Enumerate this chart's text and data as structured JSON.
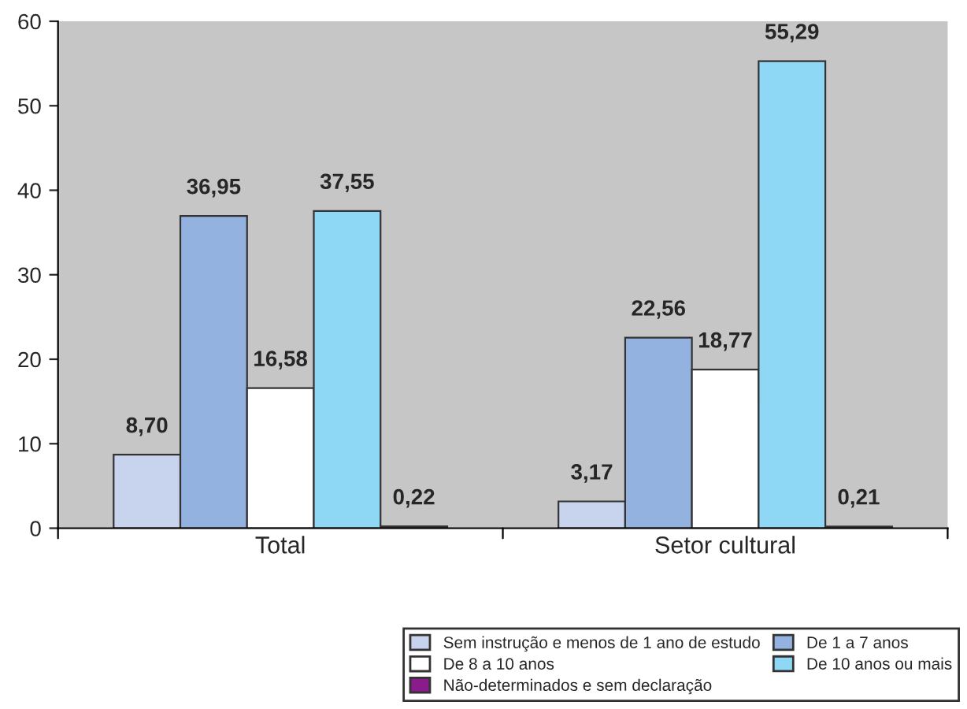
{
  "chart_data": {
    "type": "bar",
    "categories": [
      "Total",
      "Setor cultural"
    ],
    "series": [
      {
        "name": "Sem instrução e menos de 1 ano de estudo",
        "color": "#c8d3ee",
        "values": [
          8.7,
          3.17
        ],
        "value_labels": [
          "8,70",
          "3,17"
        ]
      },
      {
        "name": "De 1 a 7 anos",
        "color": "#93b2e0",
        "values": [
          36.95,
          22.56
        ],
        "value_labels": [
          "36,95",
          "22,56"
        ]
      },
      {
        "name": "De 8 a 10 anos",
        "color": "#ffffff",
        "values": [
          16.58,
          18.77
        ],
        "value_labels": [
          "16,58",
          "18,77"
        ]
      },
      {
        "name": "De 10 anos ou mais",
        "color": "#8ed8f6",
        "values": [
          37.55,
          55.29
        ],
        "value_labels": [
          "37,55",
          "55,29"
        ]
      },
      {
        "name": "Não-determinados e sem declaração",
        "color": "#8b1a8b",
        "values": [
          0.22,
          0.21
        ],
        "value_labels": [
          "0,22",
          "0,21"
        ]
      }
    ],
    "ylim": [
      0,
      60
    ],
    "yticks": [
      0,
      10,
      20,
      30,
      40,
      50,
      60
    ],
    "grid": false,
    "legend": "bottom right"
  }
}
